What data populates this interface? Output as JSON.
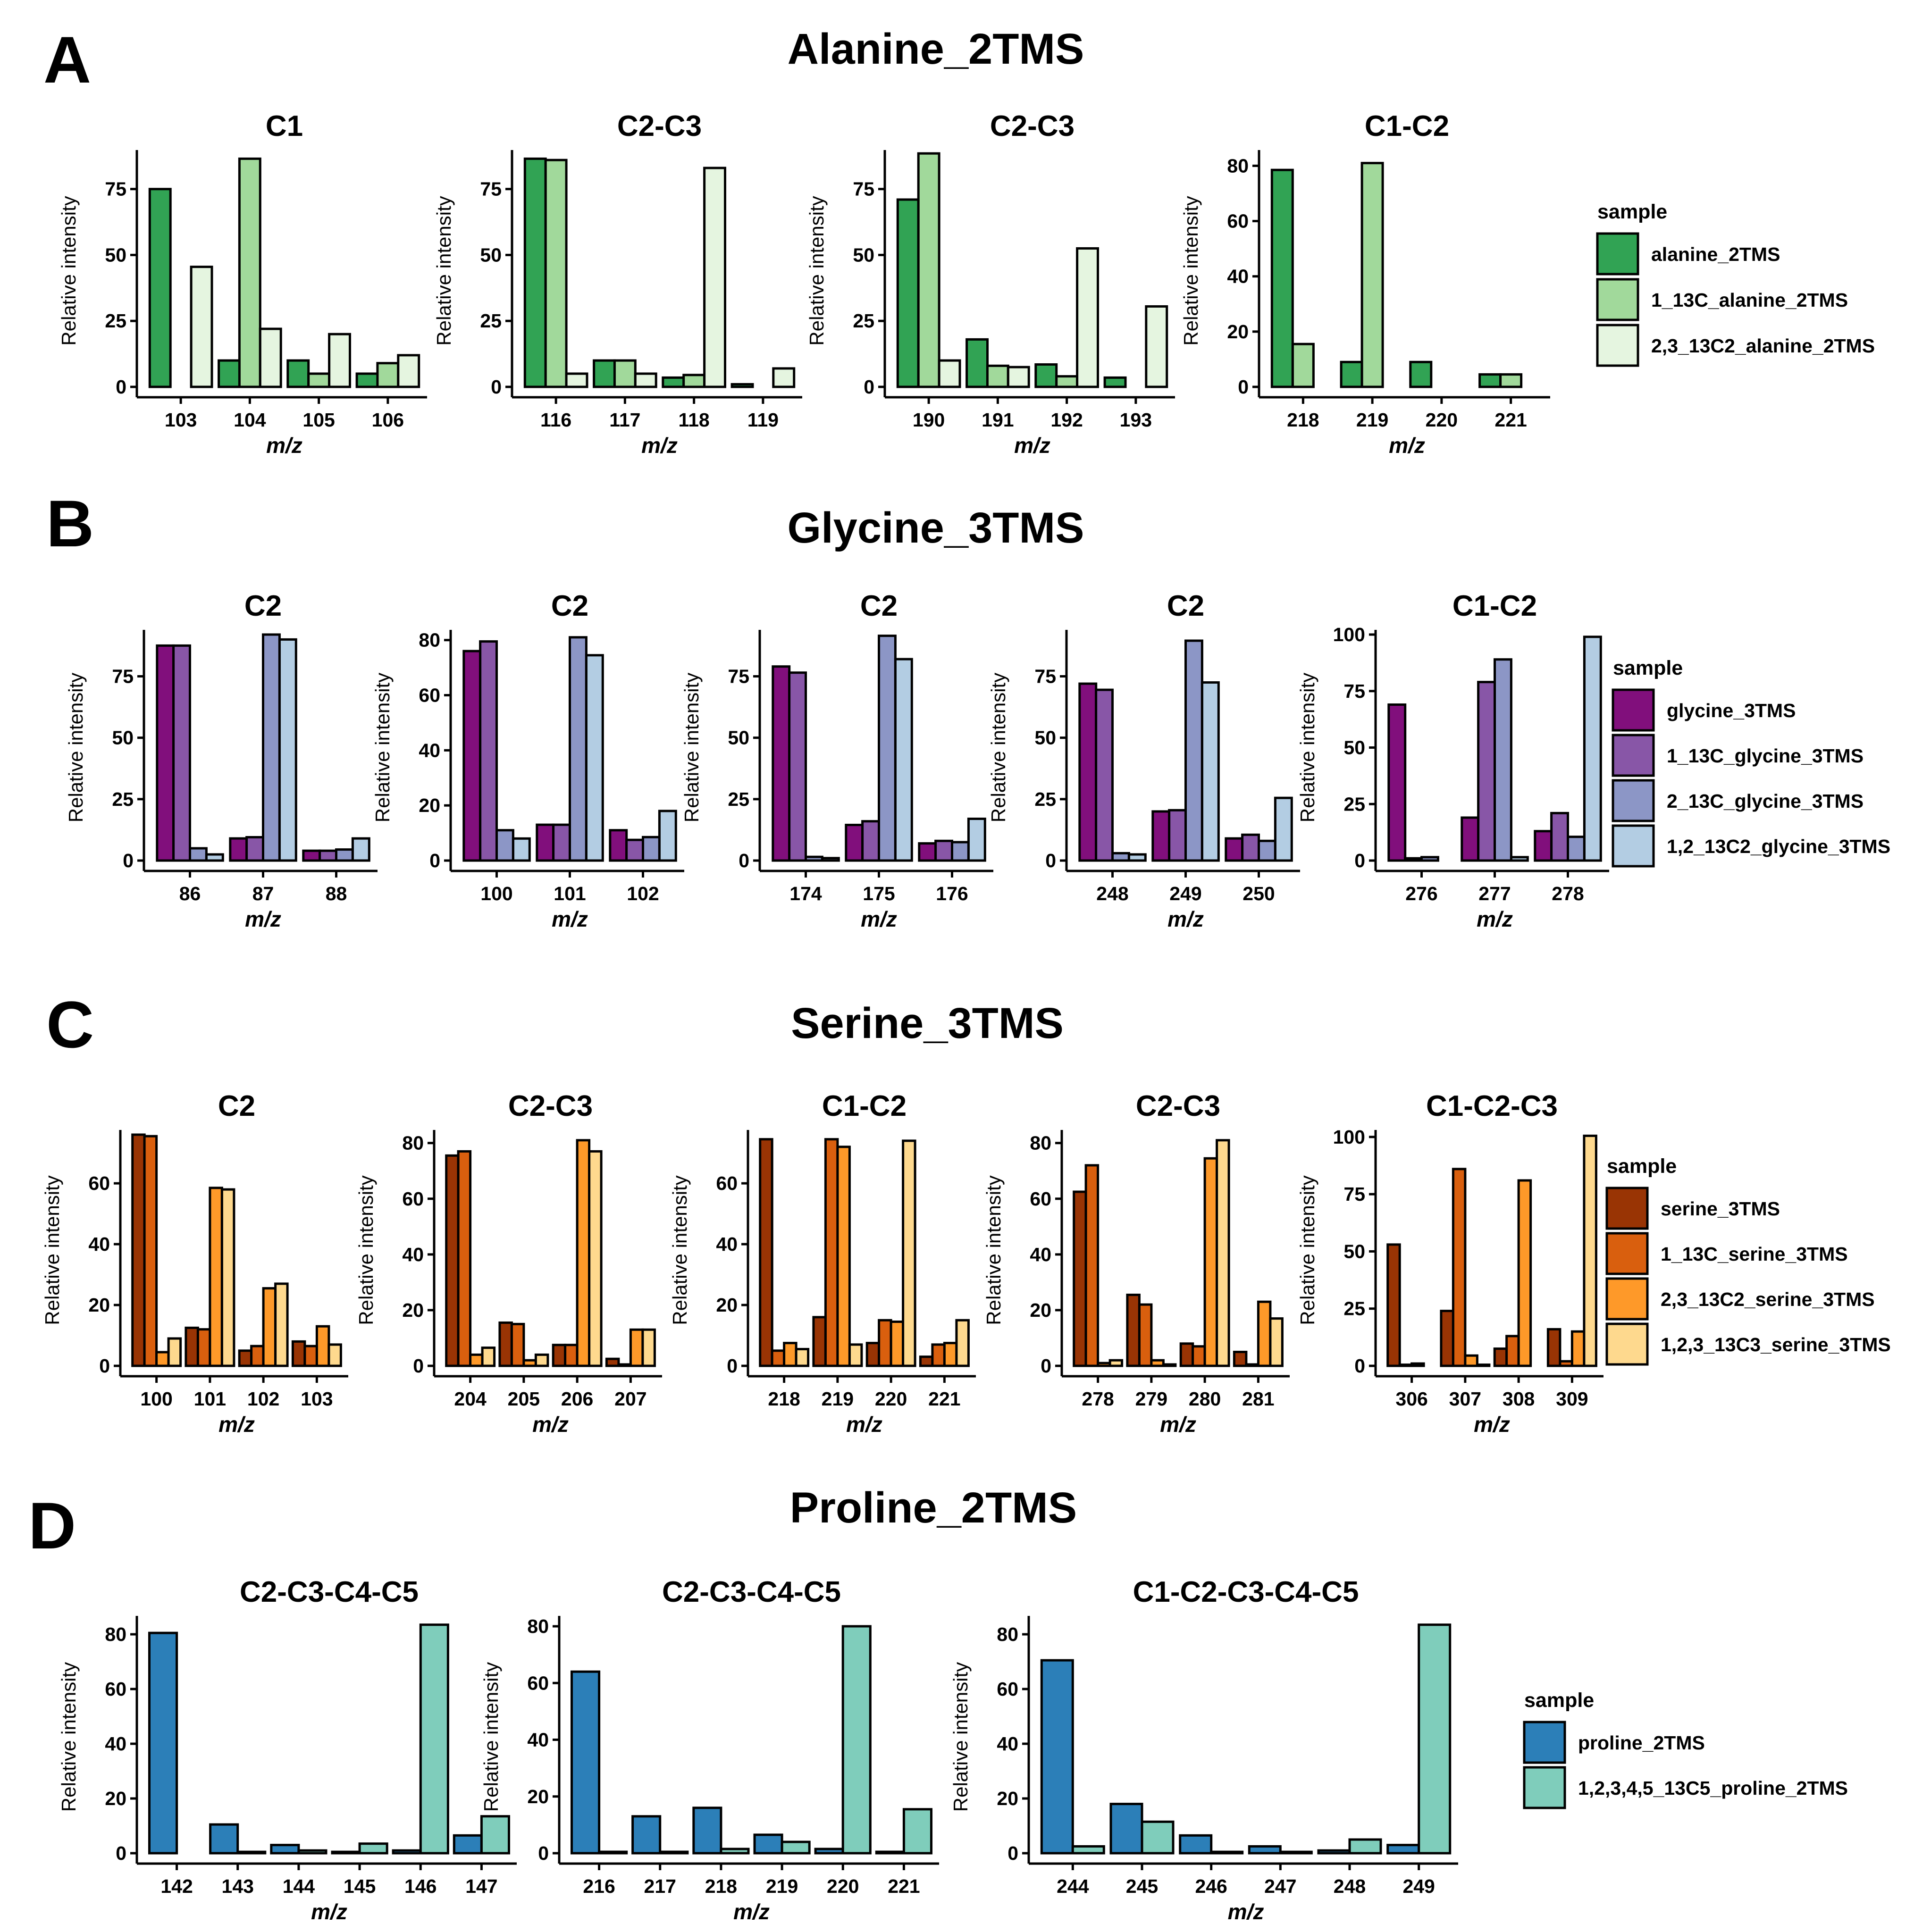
{
  "colors": {
    "alanine": [
      "#31a354",
      "#a1d99b",
      "#e5f5e0"
    ],
    "glycine": [
      "#810f7c",
      "#8856a7",
      "#8c96c6",
      "#b3cde3"
    ],
    "serine": [
      "#993404",
      "#d95f0e",
      "#fe9929",
      "#fed98e"
    ],
    "proline": [
      "#2c7fb8",
      "#7fcdbb"
    ]
  },
  "panels": [
    {
      "letter": "A",
      "title": "Alanine_2TMS",
      "legend": {
        "title": "sample",
        "entries": [
          "alanine_2TMS",
          "1_13C_alanine_2TMS",
          "2,3_13C2_alanine_2TMS"
        ]
      }
    },
    {
      "letter": "B",
      "title": "Glycine_3TMS",
      "legend": {
        "title": "sample",
        "entries": [
          "glycine_3TMS",
          "1_13C_glycine_3TMS",
          "2_13C_glycine_3TMS",
          "1,2_13C2_glycine_3TMS"
        ]
      }
    },
    {
      "letter": "C",
      "title": "Serine_3TMS",
      "legend": {
        "title": "sample",
        "entries": [
          "serine_3TMS",
          "1_13C_serine_3TMS",
          "2,3_13C2_serine_3TMS",
          "1,2,3_13C3_serine_3TMS"
        ]
      }
    },
    {
      "letter": "D",
      "title": "Proline_2TMS",
      "legend": {
        "title": "sample",
        "entries": [
          "proline_2TMS",
          "1,2,3,4,5_13C5_proline_2TMS"
        ]
      }
    }
  ],
  "chart_data": [
    {
      "panel": "A",
      "type": "bar",
      "title": "C1",
      "xlabel": "m/z",
      "ylabel": "Relative intensity",
      "ylim": [
        0,
        88
      ],
      "yticks": [
        0,
        25,
        50,
        75
      ],
      "categories": [
        "103",
        "104",
        "105",
        "106"
      ],
      "series": [
        {
          "name": "alanine_2TMS",
          "values": [
            75,
            10,
            10,
            5
          ]
        },
        {
          "name": "1_13C_alanine_2TMS",
          "values": [
            0,
            86.5,
            5,
            9
          ]
        },
        {
          "name": "2,3_13C2_alanine_2TMS",
          "values": [
            45.5,
            22,
            20,
            12
          ]
        }
      ]
    },
    {
      "panel": "A",
      "type": "bar",
      "title": "C2-C3",
      "xlabel": "m/z",
      "ylabel": "Relative intensity",
      "ylim": [
        0,
        88
      ],
      "yticks": [
        0,
        25,
        50,
        75
      ],
      "categories": [
        "116",
        "117",
        "118",
        "119"
      ],
      "series": [
        {
          "name": "alanine_2TMS",
          "values": [
            86.5,
            10,
            3.5,
            1
          ]
        },
        {
          "name": "1_13C_alanine_2TMS",
          "values": [
            86,
            10,
            4.5,
            0
          ]
        },
        {
          "name": "2,3_13C2_alanine_2TMS",
          "values": [
            5,
            5,
            83,
            7
          ]
        }
      ]
    },
    {
      "panel": "A",
      "type": "bar",
      "title": "C2-C3",
      "xlabel": "m/z",
      "ylabel": "Relative intensity",
      "ylim": [
        0,
        88
      ],
      "yticks": [
        0,
        25,
        50,
        75
      ],
      "categories": [
        "190",
        "191",
        "192",
        "193"
      ],
      "series": [
        {
          "name": "alanine_2TMS",
          "values": [
            71,
            18,
            8.5,
            3.5
          ]
        },
        {
          "name": "1_13C_alanine_2TMS",
          "values": [
            88.5,
            8,
            4,
            0
          ]
        },
        {
          "name": "2,3_13C2_alanine_2TMS",
          "values": [
            10,
            7.5,
            52.5,
            30.5
          ]
        }
      ]
    },
    {
      "panel": "A",
      "type": "bar",
      "title": "C1-C2",
      "xlabel": "m/z",
      "ylabel": "Relative intensity",
      "ylim": [
        0,
        84
      ],
      "yticks": [
        0,
        20,
        40,
        60,
        80
      ],
      "categories": [
        "218",
        "219",
        "220",
        "221"
      ],
      "series": [
        {
          "name": "alanine_2TMS",
          "values": [
            78.5,
            9,
            9,
            4.5
          ]
        },
        {
          "name": "1_13C_alanine_2TMS",
          "values": [
            15.5,
            81,
            0,
            4.5
          ]
        },
        {
          "name": "2,3_13C2_alanine_2TMS",
          "values": [
            0,
            0,
            0,
            0
          ]
        }
      ]
    },
    {
      "panel": "B",
      "type": "bar",
      "title": "C2",
      "xlabel": "m/z",
      "ylabel": "Relative intensity",
      "ylim": [
        0,
        92
      ],
      "yticks": [
        0,
        25,
        50,
        75
      ],
      "categories": [
        "86",
        "87",
        "88"
      ],
      "series": [
        {
          "name": "glycine_3TMS",
          "values": [
            87.5,
            9,
            4
          ]
        },
        {
          "name": "1_13C_glycine_3TMS",
          "values": [
            87.5,
            9.5,
            4
          ]
        },
        {
          "name": "2_13C_glycine_3TMS",
          "values": [
            5,
            92,
            4.5
          ]
        },
        {
          "name": "1,2_13C2_glycine_3TMS",
          "values": [
            2.5,
            90,
            9
          ]
        }
      ]
    },
    {
      "panel": "B",
      "type": "bar",
      "title": "C2",
      "xlabel": "m/z",
      "ylabel": "Relative intensity",
      "ylim": [
        0,
        82
      ],
      "yticks": [
        0,
        20,
        40,
        60,
        80
      ],
      "categories": [
        "100",
        "101",
        "102"
      ],
      "series": [
        {
          "name": "glycine_3TMS",
          "values": [
            76,
            13,
            11
          ]
        },
        {
          "name": "1_13C_glycine_3TMS",
          "values": [
            79.5,
            13,
            7.5
          ]
        },
        {
          "name": "2_13C_glycine_3TMS",
          "values": [
            11,
            81,
            8.5
          ]
        },
        {
          "name": "1,2_13C2_glycine_3TMS",
          "values": [
            8,
            74.5,
            18
          ]
        }
      ]
    },
    {
      "panel": "B",
      "type": "bar",
      "title": "C2",
      "xlabel": "m/z",
      "ylabel": "Relative intensity",
      "ylim": [
        0,
        92
      ],
      "yticks": [
        0,
        25,
        50,
        75
      ],
      "categories": [
        "174",
        "175",
        "176"
      ],
      "series": [
        {
          "name": "glycine_3TMS",
          "values": [
            79,
            14.5,
            7
          ]
        },
        {
          "name": "1_13C_glycine_3TMS",
          "values": [
            76.5,
            16,
            8
          ]
        },
        {
          "name": "2_13C_glycine_3TMS",
          "values": [
            1.5,
            91.5,
            7.5
          ]
        },
        {
          "name": "1,2_13C2_glycine_3TMS",
          "values": [
            1,
            82,
            17
          ]
        }
      ]
    },
    {
      "panel": "B",
      "type": "bar",
      "title": "C2",
      "xlabel": "m/z",
      "ylabel": "Relative intensity",
      "ylim": [
        0,
        92
      ],
      "yticks": [
        0,
        25,
        50,
        75
      ],
      "categories": [
        "248",
        "249",
        "250"
      ],
      "series": [
        {
          "name": "glycine_3TMS",
          "values": [
            72,
            20,
            9
          ]
        },
        {
          "name": "1_13C_glycine_3TMS",
          "values": [
            69.5,
            20.5,
            10.5
          ]
        },
        {
          "name": "2_13C_glycine_3TMS",
          "values": [
            3,
            89.5,
            8
          ]
        },
        {
          "name": "1,2_13C2_glycine_3TMS",
          "values": [
            2.5,
            72.5,
            25.5
          ]
        }
      ]
    },
    {
      "panel": "B",
      "type": "bar",
      "title": "C1-C2",
      "xlabel": "m/z",
      "ylabel": "Relative intensity",
      "ylim": [
        0,
        100
      ],
      "yticks": [
        0,
        25,
        50,
        75,
        100
      ],
      "categories": [
        "276",
        "277",
        "278"
      ],
      "series": [
        {
          "name": "glycine_3TMS",
          "values": [
            69,
            19,
            13
          ]
        },
        {
          "name": "1_13C_glycine_3TMS",
          "values": [
            1,
            79,
            21
          ]
        },
        {
          "name": "2_13C_glycine_3TMS",
          "values": [
            1.5,
            89,
            10.5
          ]
        },
        {
          "name": "1,2_13C2_glycine_3TMS",
          "values": [
            0,
            1.5,
            99
          ]
        }
      ]
    },
    {
      "panel": "C",
      "type": "bar",
      "title": "C2",
      "xlabel": "m/z",
      "ylabel": "Relative intensity",
      "ylim": [
        0,
        76
      ],
      "yticks": [
        0,
        20,
        40,
        60
      ],
      "categories": [
        "100",
        "101",
        "102",
        "103"
      ],
      "series": [
        {
          "name": "serine_3TMS",
          "values": [
            76,
            12.5,
            5,
            8
          ]
        },
        {
          "name": "1_13C_serine_3TMS",
          "values": [
            75.5,
            12,
            6.5,
            6.5
          ]
        },
        {
          "name": "2,3_13C2_serine_3TMS",
          "values": [
            4.5,
            58.5,
            25.5,
            13
          ]
        },
        {
          "name": "1,2,3_13C3_serine_3TMS",
          "values": [
            9,
            58,
            27,
            7
          ]
        }
      ]
    },
    {
      "panel": "C",
      "type": "bar",
      "title": "C2-C3",
      "xlabel": "m/z",
      "ylabel": "Relative intensity",
      "ylim": [
        0,
        83
      ],
      "yticks": [
        0,
        20,
        40,
        60,
        80
      ],
      "categories": [
        "204",
        "205",
        "206",
        "207"
      ],
      "series": [
        {
          "name": "serine_3TMS",
          "values": [
            75.5,
            15.5,
            7.5,
            2.5
          ]
        },
        {
          "name": "1_13C_serine_3TMS",
          "values": [
            77,
            15,
            7.5,
            0.5
          ]
        },
        {
          "name": "2,3_13C2_serine_3TMS",
          "values": [
            4,
            2,
            81,
            13
          ]
        },
        {
          "name": "1,2,3_13C3_serine_3TMS",
          "values": [
            6.5,
            4,
            77,
            13
          ]
        }
      ]
    },
    {
      "panel": "C",
      "type": "bar",
      "title": "C1-C2",
      "xlabel": "m/z",
      "ylabel": "Relative intensity",
      "ylim": [
        0,
        76
      ],
      "yticks": [
        0,
        20,
        40,
        60
      ],
      "categories": [
        "218",
        "219",
        "220",
        "221"
      ],
      "series": [
        {
          "name": "serine_3TMS",
          "values": [
            74.5,
            16,
            7.5,
            3
          ]
        },
        {
          "name": "1_13C_serine_3TMS",
          "values": [
            5,
            74.5,
            15,
            7
          ]
        },
        {
          "name": "2,3_13C2_serine_3TMS",
          "values": [
            7.5,
            72,
            14.5,
            7.5
          ]
        },
        {
          "name": "1,2,3_13C3_serine_3TMS",
          "values": [
            5.5,
            7,
            74,
            15
          ]
        }
      ]
    },
    {
      "panel": "C",
      "type": "bar",
      "title": "C2-C3",
      "xlabel": "m/z",
      "ylabel": "Relative intensity",
      "ylim": [
        0,
        83
      ],
      "yticks": [
        0,
        20,
        40,
        60,
        80
      ],
      "categories": [
        "278",
        "279",
        "280",
        "281"
      ],
      "series": [
        {
          "name": "serine_3TMS",
          "values": [
            62.5,
            25.5,
            8,
            5
          ]
        },
        {
          "name": "1_13C_serine_3TMS",
          "values": [
            72,
            22,
            7,
            0.5
          ]
        },
        {
          "name": "2,3_13C2_serine_3TMS",
          "values": [
            1,
            2,
            74.5,
            23
          ]
        },
        {
          "name": "1,2,3_13C3_serine_3TMS",
          "values": [
            2,
            0.5,
            81,
            17
          ]
        }
      ]
    },
    {
      "panel": "C",
      "type": "bar",
      "title": "C1-C2-C3",
      "xlabel": "m/z",
      "ylabel": "Relative intensity",
      "ylim": [
        0,
        101
      ],
      "yticks": [
        0,
        25,
        50,
        75,
        100
      ],
      "categories": [
        "306",
        "307",
        "308",
        "309"
      ],
      "series": [
        {
          "name": "serine_3TMS",
          "values": [
            53,
            24,
            7.5,
            16
          ]
        },
        {
          "name": "1_13C_serine_3TMS",
          "values": [
            0.5,
            86,
            13,
            2
          ]
        },
        {
          "name": "2,3_13C2_serine_3TMS",
          "values": [
            1,
            4.5,
            81,
            15
          ]
        },
        {
          "name": "1,2,3_13C3_serine_3TMS",
          "values": [
            0,
            0.5,
            0,
            100.5
          ]
        }
      ]
    },
    {
      "panel": "D",
      "type": "bar",
      "title": "C2-C3-C4-C5",
      "xlabel": "m/z",
      "ylabel": "Relative intensity",
      "ylim": [
        0,
        85
      ],
      "yticks": [
        0,
        20,
        40,
        60,
        80
      ],
      "categories": [
        "142",
        "143",
        "144",
        "145",
        "146",
        "147"
      ],
      "series": [
        {
          "name": "proline_2TMS",
          "values": [
            80.5,
            10.5,
            3,
            0.5,
            1,
            6.5
          ]
        },
        {
          "name": "1,2,3,4,5_13C5_proline_2TMS",
          "values": [
            0,
            0.5,
            1,
            3.5,
            83.5,
            13.5
          ]
        }
      ]
    },
    {
      "panel": "D",
      "type": "bar",
      "title": "C2-C3-C4-C5",
      "xlabel": "m/z",
      "ylabel": "Relative intensity",
      "ylim": [
        0,
        82
      ],
      "yticks": [
        0,
        20,
        40,
        60,
        80
      ],
      "categories": [
        "216",
        "217",
        "218",
        "219",
        "220",
        "221"
      ],
      "series": [
        {
          "name": "proline_2TMS",
          "values": [
            64,
            13,
            16,
            6.5,
            1.5,
            0.5
          ]
        },
        {
          "name": "1,2,3,4,5_13C5_proline_2TMS",
          "values": [
            0.5,
            0.5,
            1.5,
            4,
            80,
            15.5
          ]
        }
      ]
    },
    {
      "panel": "D",
      "type": "bar",
      "title": "C1-C2-C3-C4-C5",
      "xlabel": "m/z",
      "ylabel": "Relative intensity",
      "ylim": [
        0,
        85
      ],
      "yticks": [
        0,
        20,
        40,
        60,
        80
      ],
      "categories": [
        "244",
        "245",
        "246",
        "247",
        "248",
        "249"
      ],
      "series": [
        {
          "name": "proline_2TMS",
          "values": [
            70.5,
            18,
            6.5,
            2.5,
            1,
            3
          ]
        },
        {
          "name": "1,2,3,4,5_13C5_proline_2TMS",
          "values": [
            2.5,
            11.5,
            0.5,
            0.5,
            5,
            83.5
          ]
        }
      ]
    }
  ]
}
